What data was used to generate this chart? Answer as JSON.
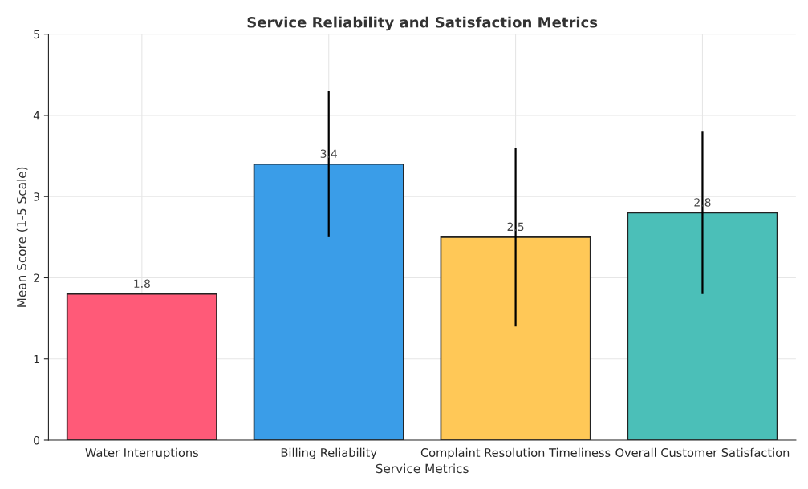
{
  "chart_data": {
    "type": "bar",
    "title": "Service Reliability and Satisfaction Metrics",
    "xlabel": "Service Metrics",
    "ylabel": "Mean Score (1-5 Scale)",
    "categories": [
      "Water Interruptions",
      "Billing Reliability",
      "Complaint Resolution Timeliness",
      "Overall Customer Satisfaction"
    ],
    "values": [
      1.8,
      3.4,
      2.5,
      2.8
    ],
    "errors": [
      null,
      0.9,
      1.1,
      1.0
    ],
    "colors": [
      "#ff5a78",
      "#3a9de8",
      "#ffc857",
      "#4bbfb8"
    ],
    "ylim": [
      0,
      5
    ],
    "yticks": [
      0,
      1,
      2,
      3,
      4,
      5
    ],
    "grid": true,
    "data_labels": true
  }
}
